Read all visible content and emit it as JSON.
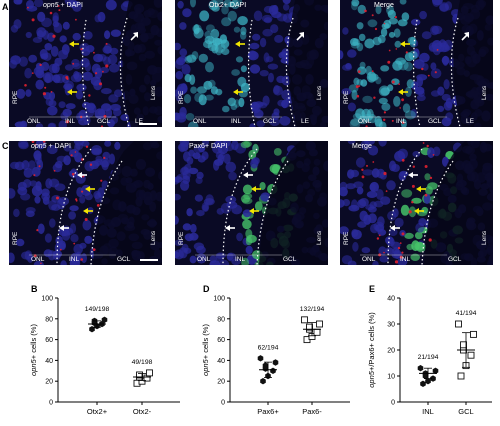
{
  "panel_letters": [
    "A",
    "C",
    "B",
    "D",
    "E"
  ],
  "row_A": {
    "panels": [
      {
        "title": "opn5 + DAPI",
        "title_gene": "opn5",
        "title_rest": " + DAPI"
      },
      {
        "title": "Otx2+ DAPI"
      },
      {
        "title": "Merge"
      }
    ],
    "left_label": "RPE",
    "right_label": "Lens",
    "bottom_labels": [
      "ONL",
      "INL",
      "GCL",
      "LE"
    ]
  },
  "row_C": {
    "panels": [
      {
        "title": "opn5 + DAPI",
        "title_gene": "opn5",
        "title_rest": " + DAPI"
      },
      {
        "title": "Pax6+ DAPI"
      },
      {
        "title": "Merge"
      }
    ],
    "left_label": "RPE",
    "right_label": "Lens",
    "bottom_labels": [
      "ONL",
      "INL",
      "GCL"
    ]
  },
  "colors": {
    "dapi": "#2a2a9a",
    "otx2": "#3fb9c9",
    "pax6": "#46c46a",
    "opn5": "#e02030",
    "arrow_yellow": "#f2e600",
    "arrow_white": "#ffffff"
  },
  "chart_data": [
    {
      "panel": "B",
      "type": "scatter",
      "ylabel_gene": "opn5",
      "ylabel_rest": "+ cells (%)",
      "categories": [
        "Otx2+",
        "Otx2-"
      ],
      "ylim": [
        0,
        100
      ],
      "yticks": [
        0,
        20,
        40,
        60,
        80,
        100
      ],
      "annotations": [
        "149/198",
        "49/198"
      ],
      "series": [
        {
          "marker": "filled-hexagon",
          "values": [
            70,
            73,
            75,
            76,
            78,
            79
          ]
        },
        {
          "marker": "open-square",
          "values": [
            18,
            20,
            23,
            24,
            26,
            28
          ]
        }
      ],
      "means": [
        75,
        24
      ]
    },
    {
      "panel": "D",
      "type": "scatter",
      "ylabel_gene": "opn5",
      "ylabel_rest": "+ cells (%)",
      "categories": [
        "Pax6+",
        "Pax6-"
      ],
      "ylim": [
        0,
        100
      ],
      "yticks": [
        0,
        20,
        40,
        60,
        80,
        100
      ],
      "annotations": [
        "62/194",
        "132/194"
      ],
      "series": [
        {
          "marker": "filled-hexagon",
          "values": [
            20,
            25,
            30,
            32,
            35,
            38,
            42
          ]
        },
        {
          "marker": "open-square",
          "values": [
            60,
            63,
            67,
            70,
            72,
            75,
            79
          ]
        }
      ],
      "means": [
        31,
        70
      ]
    },
    {
      "panel": "E",
      "type": "scatter",
      "ylabel_gene": "opn5",
      "ylabel_rest": "+/Pax6+ cells (%)",
      "categories": [
        "INL",
        "GCL"
      ],
      "ylim": [
        0,
        40
      ],
      "yticks": [
        0,
        10,
        20,
        30,
        40
      ],
      "annotations": [
        "21/194",
        "41/194"
      ],
      "series": [
        {
          "marker": "filled-hexagon",
          "values": [
            7,
            8,
            9,
            10,
            11,
            12,
            13
          ]
        },
        {
          "marker": "open-square",
          "values": [
            10,
            14,
            18,
            20,
            22,
            26,
            30
          ]
        }
      ],
      "means": [
        11,
        20
      ]
    }
  ]
}
